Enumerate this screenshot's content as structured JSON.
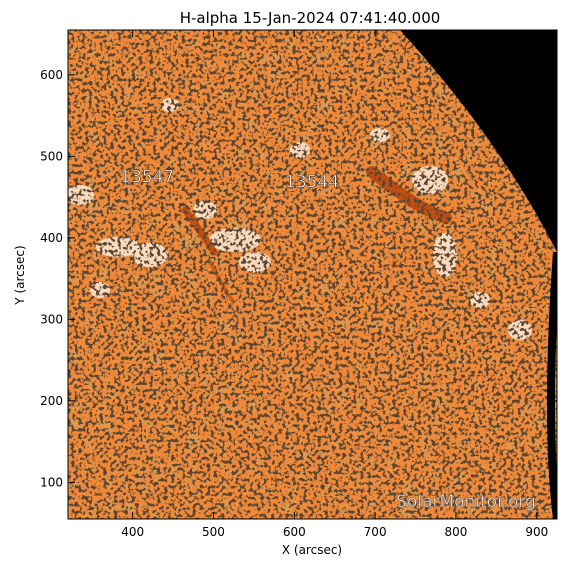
{
  "title": "H-alpha 15-Jan-2024 07:41:40.000",
  "xlabel": "X (arcsec)",
  "ylabel": "Y (arcsec)",
  "xlim": [
    320,
    925
  ],
  "ylim": [
    55,
    655
  ],
  "x_ticks": [
    400,
    500,
    600,
    700,
    800,
    900
  ],
  "y_ticks": [
    100,
    200,
    300,
    400,
    500,
    600
  ],
  "regions": [
    {
      "label": "13547",
      "x": 418,
      "y": 468
    },
    {
      "label": "13544",
      "x": 622,
      "y": 462
    }
  ],
  "watermark": "SolarMonitor.org",
  "colors": {
    "disk_base": "#f08a3a",
    "disk_light": "#f6a463",
    "disk_dark": "#b9480f",
    "dark_speck": "#2a1a10",
    "plage": "#fde9d6",
    "space": "#000000",
    "frame": "#000000"
  }
}
